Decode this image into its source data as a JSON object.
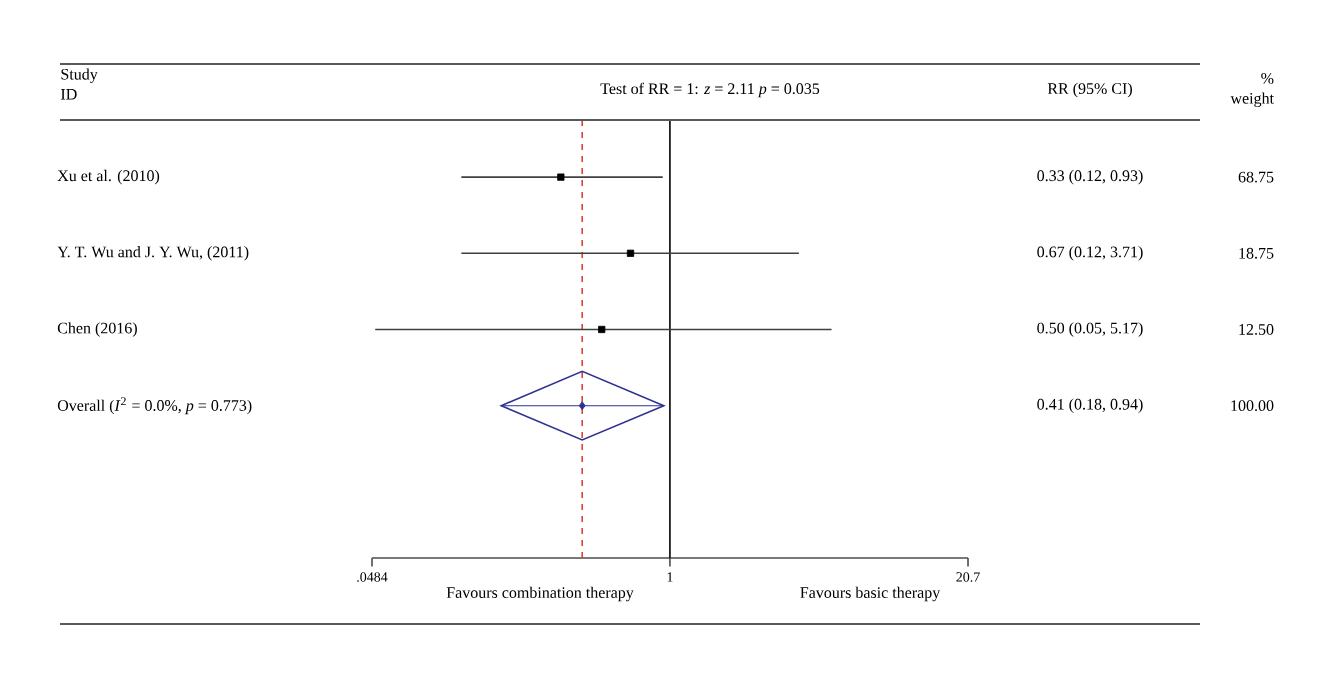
{
  "chart_data": {
    "type": "scatter",
    "orientation": "horizontal",
    "title": "Test of RR = 1: *z* = 2.11 *p* = 0.035",
    "ylabel": "Study ID",
    "categories": [
      "Xu et al. (2010)",
      "Y. T. Wu and J. Y. Wu, (2011)",
      "Chen (2016)",
      "Overall (*I*$^{2}$ = 0.0%, *p* = 0.773)"
    ],
    "series": [
      {
        "color": "#000000",
        "marker": "square",
        "values": [
          0.33,
          0.67,
          0.5,
          null
        ],
        "errors": [
          [
            0.12,
            0.93
          ],
          [
            0.12,
            3.71
          ],
          [
            0.05,
            5.17
          ],
          null
        ]
      },
      {
        "color": "#2e3192",
        "marker": "diamond",
        "values": [
          null,
          null,
          null,
          0.41
        ],
        "errors": [
          null,
          null,
          null,
          [
            0.18,
            0.94
          ]
        ]
      }
    ],
    "log": "x",
    "xlim": [
      0.0484,
      20.7
    ],
    "xticks": [
      {
        "value": 0.0484,
        "label": ".0484"
      },
      1,
      20.7
    ],
    "ref_lines": [
      {
        "axis": "x",
        "value": 1,
        "color": "#000000",
        "line_style": "solid"
      },
      {
        "axis": "x",
        "value": 0.41,
        "color": "#d9443b",
        "line_style": "dashed"
      }
    ],
    "annotations": [
      "RR (95% CI)",
      "% weight",
      "0.33 (0.12, 0.93)",
      "0.67 (0.12, 3.71)",
      "0.50 (0.05, 5.17)",
      "0.41 (0.18, 0.94)",
      "68.75",
      "18.75",
      "12.50",
      "100.00",
      "Favours combination therapy",
      "Favours basic therapy"
    ],
    "grid": false
  }
}
